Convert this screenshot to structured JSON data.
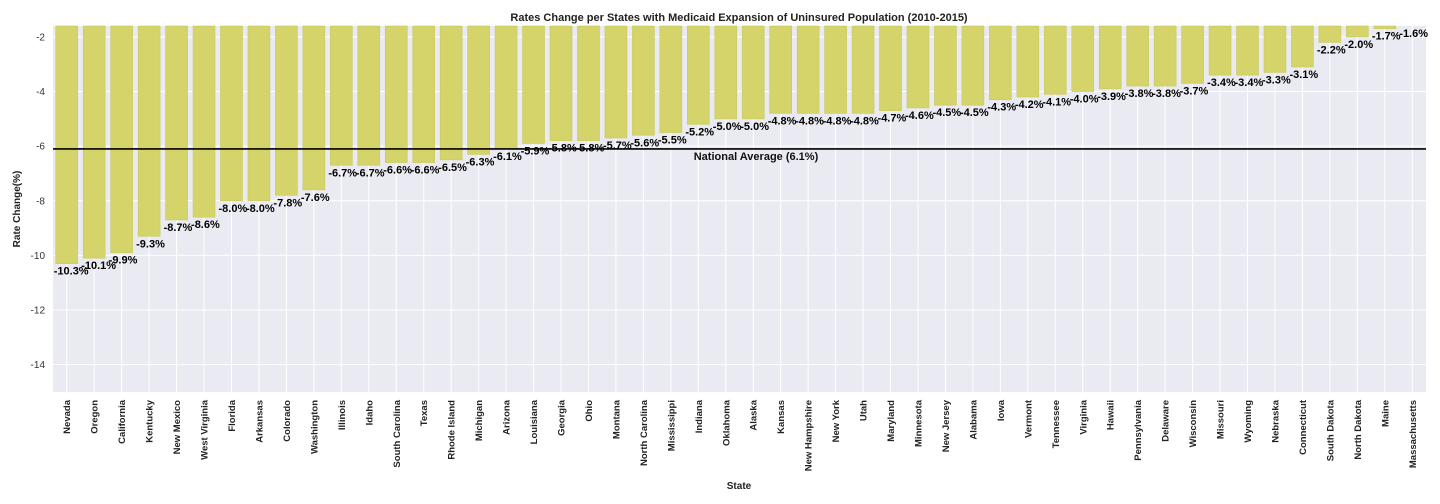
{
  "chart_data": {
    "type": "bar",
    "title": "Rates Change per States with Medicaid Expansion of Uninsured Population (2010-2015)",
    "xlabel": "State",
    "ylabel": "Rate Change(%)",
    "ylim": [
      -15,
      -1.6
    ],
    "yticks": [
      -2,
      -4,
      -6,
      -8,
      -10,
      -12,
      -14
    ],
    "grid": true,
    "bar_color": "#d4d46a",
    "background_color": "#eaeaf2",
    "reference_line": {
      "value": -6.1,
      "label": "National Average (6.1%)",
      "color": "#000000"
    },
    "categories": [
      "Nevada",
      "Oregon",
      "California",
      "Kentucky",
      "New Mexico",
      "West Virginia",
      "Florida",
      "Arkansas",
      "Colorado",
      "Washington",
      "Illinois",
      "Idaho",
      "South Carolina",
      "Texas",
      "Rhode Island",
      "Michigan",
      "Arizona",
      "Louisiana",
      "Georgia",
      "Ohio",
      "Montana",
      "North Carolina",
      "Mississippi",
      "Indiana",
      "Oklahoma",
      "Alaska",
      "Kansas",
      "New Hampshire",
      "New York",
      "Utah",
      "Maryland",
      "Minnesota",
      "New Jersey",
      "Alabama",
      "Iowa",
      "Vermont",
      "Tennessee",
      "Virginia",
      "Hawaii",
      "Pennsylvania",
      "Delaware",
      "Wisconsin",
      "Missouri",
      "Wyoming",
      "Nebraska",
      "Connecticut",
      "South Dakota",
      "North Dakota",
      "Maine",
      "Massachusetts"
    ],
    "values": [
      -10.3,
      -10.1,
      -9.9,
      -9.3,
      -8.7,
      -8.6,
      -8.0,
      -8.0,
      -7.8,
      -7.6,
      -6.7,
      -6.7,
      -6.6,
      -6.6,
      -6.5,
      -6.3,
      -6.1,
      -5.9,
      -5.8,
      -5.8,
      -5.7,
      -5.6,
      -5.5,
      -5.2,
      -5.0,
      -5.0,
      -4.8,
      -4.8,
      -4.8,
      -4.8,
      -4.7,
      -4.6,
      -4.5,
      -4.5,
      -4.3,
      -4.2,
      -4.1,
      -4.0,
      -3.9,
      -3.8,
      -3.8,
      -3.7,
      -3.4,
      -3.4,
      -3.3,
      -3.1,
      -2.2,
      -2.0,
      -1.7,
      -1.6
    ],
    "data_labels": [
      "-10.3%",
      "-10.1%",
      "-9.9%",
      "-9.3%",
      "-8.7%",
      "-8.6%",
      "-8.0%",
      "-8.0%",
      "-7.8%",
      "-7.6%",
      "-6.7%",
      "-6.7%",
      "-6.6%",
      "-6.6%",
      "-6.5%",
      "-6.3%",
      "-6.1%",
      "-5.9%",
      "-5.8%",
      "-5.8%",
      "-5.7%",
      "-5.6%",
      "-5.5%",
      "-5.2%",
      "-5.0%",
      "-5.0%",
      "-4.8%",
      "-4.8%",
      "-4.8%",
      "-4.8%",
      "-4.7%",
      "-4.6%",
      "-4.5%",
      "-4.5%",
      "-4.3%",
      "-4.2%",
      "-4.1%",
      "-4.0%",
      "-3.9%",
      "-3.8%",
      "-3.8%",
      "-3.7%",
      "-3.4%",
      "-3.4%",
      "-3.3%",
      "-3.1%",
      "-2.2%",
      "-2.0%",
      "-1.7%",
      "-1.6%"
    ]
  }
}
